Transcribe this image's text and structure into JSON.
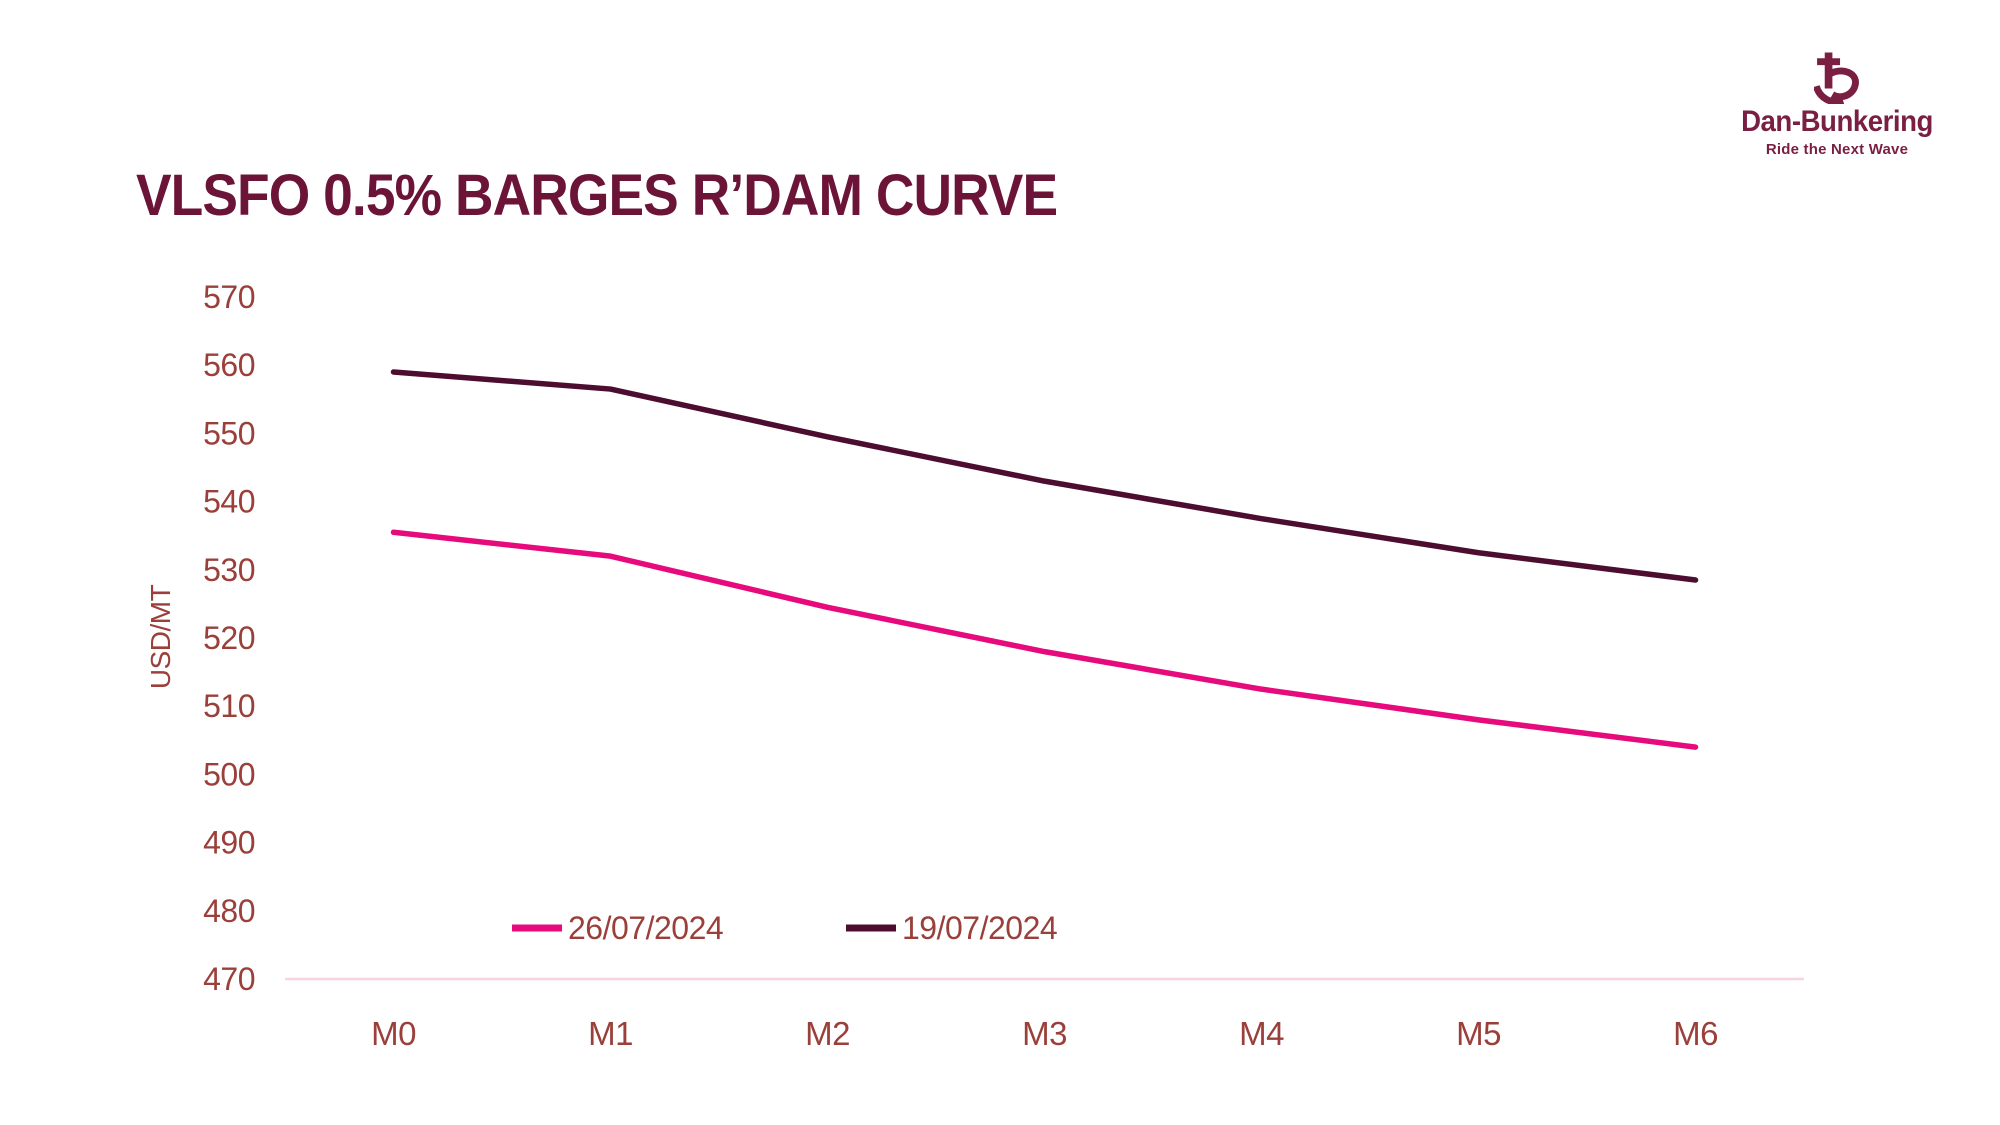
{
  "header": {
    "title": "VLSFO 0.5% BARGES R’DAM CURVE"
  },
  "logo": {
    "name": "Dan-Bunkering",
    "tagline": "Ride the Next Wave",
    "icon": "anchor-logo-icon"
  },
  "colors": {
    "title": "#6B1437",
    "logo": "#7A1F42",
    "axis_text": "#9A3F39",
    "axis_line": "#F7D3E3",
    "series_pink": "#E60A7C",
    "series_dark": "#4C0D30",
    "background": "#FFFFFF"
  },
  "chart_data": {
    "type": "line",
    "title": "VLSFO 0.5% BARGES R’DAM CURVE",
    "xlabel": "",
    "ylabel": "USD/MT",
    "categories": [
      "M0",
      "M1",
      "M2",
      "M3",
      "M4",
      "M5",
      "M6"
    ],
    "series": [
      {
        "name": "26/07/2024",
        "color": "#E60A7C",
        "values": [
          535.5,
          532,
          524.5,
          518,
          512.5,
          508,
          504
        ]
      },
      {
        "name": "19/07/2024",
        "color": "#4C0D30",
        "values": [
          559,
          556.5,
          549.5,
          543,
          537.5,
          532.5,
          528.5
        ]
      }
    ],
    "ylim": [
      470,
      570
    ],
    "y_ticks": [
      570,
      560,
      550,
      540,
      530,
      520,
      510,
      500,
      490,
      480,
      470
    ],
    "grid": false,
    "legend_position": "bottom-inside"
  }
}
